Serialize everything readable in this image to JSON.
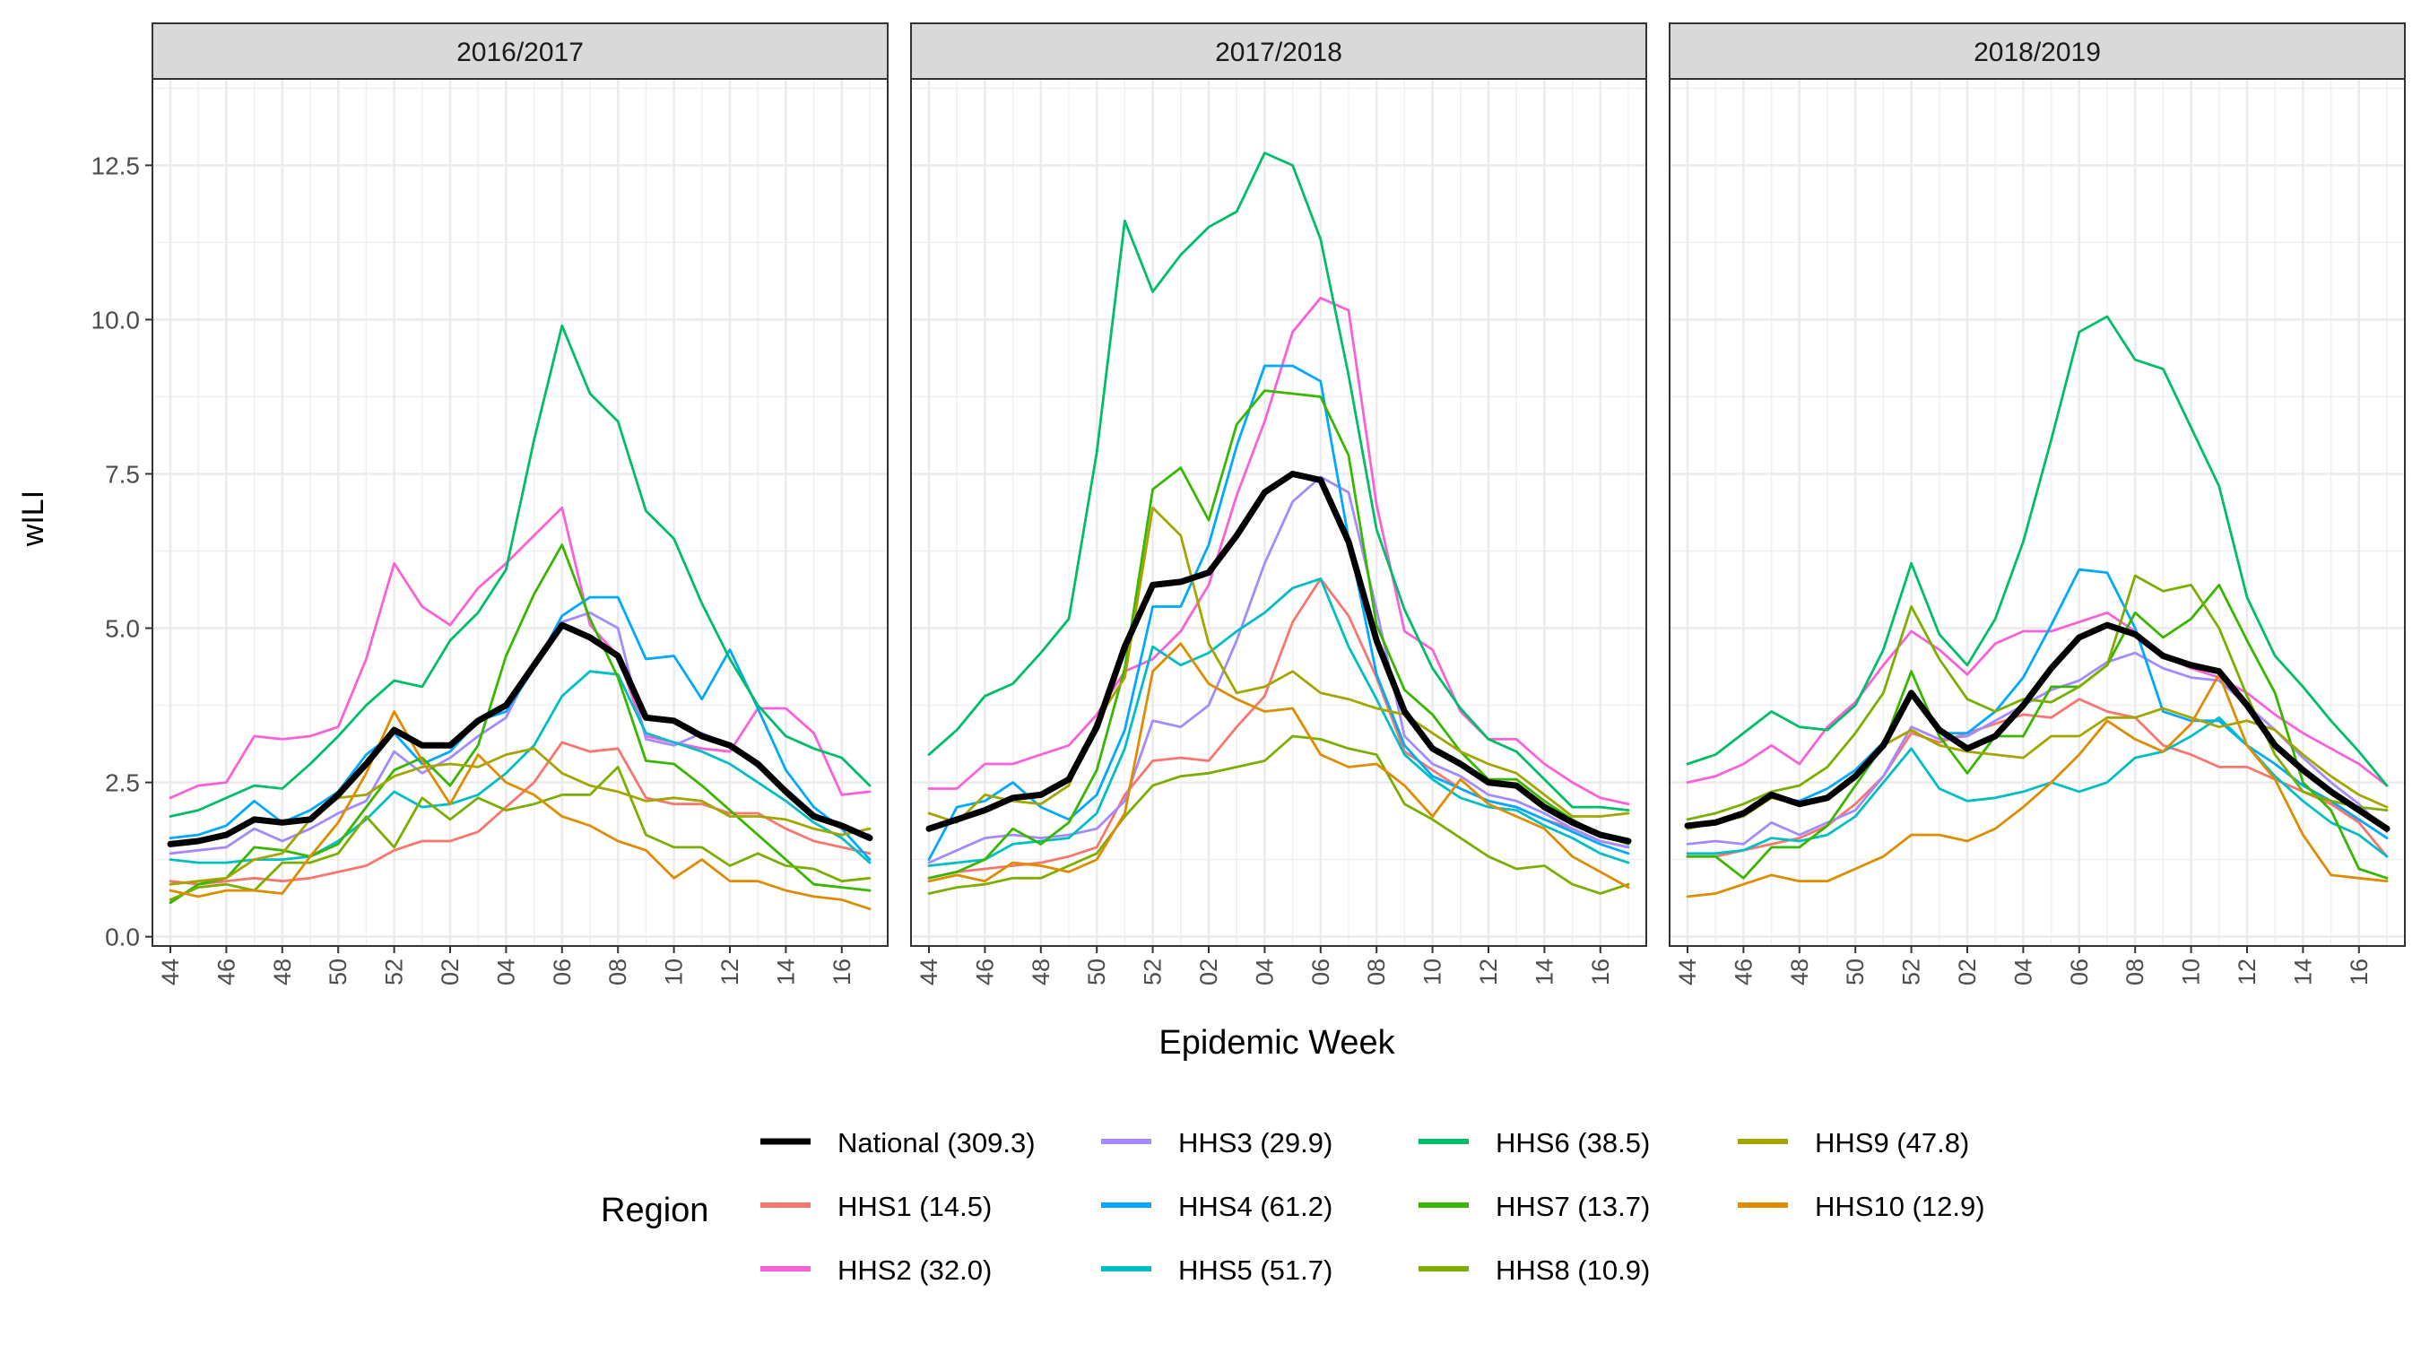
{
  "chart_data": {
    "type": "line",
    "facets": [
      "2016/2017",
      "2017/2018",
      "2018/2019"
    ],
    "xlabel": "Epidemic Week",
    "ylabel": "wILI",
    "x_tick_labels": [
      "44",
      "46",
      "48",
      "50",
      "52",
      "02",
      "04",
      "06",
      "08",
      "10",
      "12",
      "14",
      "16"
    ],
    "x_weeks": [
      "44",
      "45",
      "46",
      "47",
      "48",
      "49",
      "50",
      "51",
      "52",
      "01",
      "02",
      "03",
      "04",
      "05",
      "06",
      "07",
      "08",
      "09",
      "10",
      "11",
      "12",
      "13",
      "14",
      "15",
      "16",
      "17"
    ],
    "y_ticks": [
      0.0,
      2.5,
      5.0,
      7.5,
      10.0,
      12.5
    ],
    "y_tick_labels": [
      "0.0",
      "2.5",
      "5.0",
      "7.5",
      "10.0",
      "12.5"
    ],
    "ylim": [
      -0.15,
      13.9
    ],
    "grid": true,
    "legend": {
      "title": "Region",
      "placement": "bottom",
      "entries": [
        "National (309.3)",
        "HHS1 (14.5)",
        "HHS2 (32.0)",
        "HHS3 (29.9)",
        "HHS4 (61.2)",
        "HHS5 (51.7)",
        "HHS6 (38.5)",
        "HHS7 (13.7)",
        "HHS8 (10.9)",
        "HHS9 (47.8)",
        "HHS10 (12.9)"
      ]
    },
    "series": [
      {
        "name": "National (309.3)",
        "color": "#000000",
        "values": [
          [
            1.5,
            1.55,
            1.65,
            1.9,
            1.85,
            1.9,
            2.3,
            2.8,
            3.35,
            3.1,
            3.1,
            3.5,
            3.75,
            4.4,
            5.05,
            4.85,
            4.55,
            3.55,
            3.5,
            3.25,
            3.1,
            2.8,
            2.35,
            1.95,
            1.8,
            1.6
          ],
          [
            1.75,
            1.9,
            2.05,
            2.25,
            2.3,
            2.55,
            3.4,
            4.7,
            5.7,
            5.75,
            5.9,
            6.5,
            7.2,
            7.5,
            7.4,
            6.4,
            4.8,
            3.65,
            3.05,
            2.8,
            2.5,
            2.45,
            2.1,
            1.85,
            1.65,
            1.55
          ],
          [
            1.8,
            1.85,
            2.0,
            2.3,
            2.15,
            2.25,
            2.6,
            3.1,
            3.95,
            3.35,
            3.05,
            3.25,
            3.75,
            4.35,
            4.85,
            5.05,
            4.9,
            4.55,
            4.4,
            4.3,
            3.75,
            3.1,
            2.7,
            2.35,
            2.05,
            1.75
          ]
        ]
      },
      {
        "name": "HHS1 (14.5)",
        "color": "#FB61D7",
        "values": [
          [
            0.9,
            0.85,
            0.9,
            0.95,
            0.9,
            0.95,
            1.05,
            1.15,
            1.4,
            1.55,
            1.55,
            1.7,
            2.1,
            2.5,
            3.15,
            3.0,
            3.05,
            2.25,
            2.15,
            2.15,
            2.0,
            2.0,
            1.75,
            1.55,
            1.45,
            1.35
          ],
          [
            0.95,
            1.05,
            1.1,
            1.15,
            1.2,
            1.3,
            1.45,
            2.3,
            2.85,
            2.9,
            2.85,
            3.4,
            3.9,
            5.1,
            5.8,
            5.2,
            4.2,
            3.0,
            2.7,
            2.4,
            2.2,
            2.1,
            1.9,
            1.75,
            1.55,
            1.45
          ],
          [
            1.3,
            1.3,
            1.4,
            1.5,
            1.6,
            1.8,
            2.15,
            2.6,
            3.3,
            3.15,
            3.3,
            3.45,
            3.6,
            3.55,
            3.85,
            3.65,
            3.55,
            3.1,
            2.95,
            2.75,
            2.75,
            2.55,
            2.35,
            2.15,
            1.85,
            1.3
          ]
        ]
      },
      {
        "name": "HHS2 (32.0)",
        "color": "#E76BF3",
        "values": [
          [
            2.25,
            2.45,
            2.5,
            3.25,
            3.2,
            3.25,
            3.4,
            4.5,
            6.05,
            5.35,
            5.05,
            5.65,
            6.05,
            6.5,
            6.95,
            5.05,
            4.55,
            3.25,
            3.15,
            3.05,
            3.0,
            3.7,
            3.7,
            3.3,
            2.3,
            2.35
          ],
          [
            2.4,
            2.4,
            2.8,
            2.8,
            2.95,
            3.1,
            3.6,
            4.3,
            4.5,
            4.95,
            5.7,
            7.15,
            8.35,
            9.8,
            10.35,
            10.15,
            7.0,
            4.95,
            4.65,
            3.65,
            3.2,
            3.2,
            2.8,
            2.5,
            2.25,
            2.15
          ],
          [
            2.5,
            2.6,
            2.8,
            3.1,
            2.8,
            3.4,
            3.8,
            4.4,
            4.95,
            4.65,
            4.25,
            4.75,
            4.95,
            4.95,
            5.1,
            5.25,
            4.95,
            4.55,
            4.35,
            4.2,
            3.95,
            3.6,
            3.3,
            3.05,
            2.8,
            2.45
          ]
        ]
      },
      {
        "name": "HHS3 (29.9)",
        "color": "#A58AFF",
        "values": [
          [
            1.35,
            1.4,
            1.45,
            1.75,
            1.55,
            1.75,
            2.0,
            2.2,
            3.0,
            2.65,
            2.9,
            3.25,
            3.55,
            4.45,
            5.1,
            5.25,
            5.0,
            3.2,
            3.1,
            3.3,
            3.1,
            2.75,
            2.4,
            2.0,
            1.75,
            1.65
          ],
          [
            1.2,
            1.4,
            1.6,
            1.65,
            1.6,
            1.65,
            1.75,
            2.2,
            3.5,
            3.4,
            3.75,
            4.8,
            6.05,
            7.05,
            7.45,
            7.2,
            5.3,
            3.25,
            2.8,
            2.6,
            2.3,
            2.2,
            2.0,
            1.75,
            1.55,
            1.45
          ],
          [
            1.5,
            1.55,
            1.5,
            1.85,
            1.65,
            1.85,
            2.05,
            2.6,
            3.4,
            3.2,
            3.25,
            3.5,
            3.75,
            4.0,
            4.15,
            4.45,
            4.6,
            4.35,
            4.2,
            4.15,
            3.75,
            3.35,
            2.9,
            2.5,
            2.15,
            1.7
          ]
        ]
      },
      {
        "name": "HHS4 (61.2)",
        "color": "#00A9FF",
        "values": [
          [
            1.6,
            1.65,
            1.8,
            2.2,
            1.85,
            2.05,
            2.35,
            2.95,
            3.3,
            2.8,
            3.0,
            3.5,
            3.65,
            4.35,
            5.2,
            5.5,
            5.5,
            4.5,
            4.55,
            3.85,
            4.65,
            3.7,
            2.7,
            2.1,
            1.75,
            1.25
          ],
          [
            1.25,
            2.1,
            2.2,
            2.5,
            2.1,
            1.9,
            2.3,
            3.35,
            5.35,
            5.35,
            6.35,
            7.95,
            9.25,
            9.25,
            9.0,
            6.45,
            4.25,
            3.1,
            2.6,
            2.4,
            2.2,
            2.1,
            1.9,
            1.7,
            1.5,
            1.35
          ],
          [
            1.75,
            1.85,
            2.0,
            2.25,
            2.2,
            2.4,
            2.7,
            3.15,
            3.95,
            3.3,
            3.3,
            3.65,
            4.2,
            5.05,
            5.95,
            5.9,
            5.0,
            3.65,
            3.5,
            3.5,
            3.1,
            2.8,
            2.45,
            2.2,
            1.9,
            1.6
          ]
        ]
      },
      {
        "name": "HHS5 (51.7)",
        "color": "#00BFC4",
        "values": [
          [
            1.25,
            1.2,
            1.2,
            1.25,
            1.25,
            1.3,
            1.55,
            1.9,
            2.35,
            2.1,
            2.15,
            2.3,
            2.65,
            3.1,
            3.9,
            4.3,
            4.25,
            3.3,
            3.15,
            3.0,
            2.8,
            2.5,
            2.2,
            1.85,
            1.6,
            1.2
          ],
          [
            1.15,
            1.2,
            1.25,
            1.5,
            1.55,
            1.6,
            2.0,
            3.05,
            4.7,
            4.4,
            4.6,
            4.95,
            5.25,
            5.65,
            5.8,
            4.7,
            3.85,
            2.95,
            2.55,
            2.25,
            2.1,
            2.05,
            1.8,
            1.6,
            1.35,
            1.2
          ],
          [
            1.35,
            1.35,
            1.4,
            1.6,
            1.55,
            1.65,
            1.95,
            2.5,
            3.05,
            2.4,
            2.2,
            2.25,
            2.35,
            2.5,
            2.35,
            2.5,
            2.9,
            3.0,
            3.25,
            3.55,
            3.1,
            2.6,
            2.2,
            1.85,
            1.65,
            1.3
          ]
        ]
      },
      {
        "name": "HHS6 (38.5)",
        "color": "#00BF7D",
        "values": [
          [
            1.95,
            2.05,
            2.25,
            2.45,
            2.4,
            2.8,
            3.25,
            3.75,
            4.15,
            4.05,
            4.8,
            5.25,
            5.95,
            8.05,
            9.9,
            8.8,
            8.35,
            6.9,
            6.45,
            5.4,
            4.5,
            3.75,
            3.25,
            3.05,
            2.9,
            2.45
          ],
          [
            2.95,
            3.35,
            3.9,
            4.1,
            4.6,
            5.15,
            7.85,
            11.6,
            10.45,
            11.05,
            11.5,
            11.75,
            12.7,
            12.5,
            11.3,
            9.1,
            6.6,
            5.3,
            4.35,
            3.7,
            3.2,
            3.0,
            2.55,
            2.1,
            2.1,
            2.05
          ],
          [
            2.8,
            2.95,
            3.3,
            3.65,
            3.4,
            3.35,
            3.75,
            4.65,
            6.05,
            4.9,
            4.4,
            5.15,
            6.4,
            8.05,
            9.8,
            10.05,
            9.35,
            9.2,
            8.25,
            7.3,
            5.5,
            4.55,
            4.05,
            3.5,
            3.0,
            2.45
          ]
        ]
      },
      {
        "name": "HHS7 (13.7)",
        "color": "#39B600",
        "values": [
          [
            0.55,
            0.85,
            0.95,
            1.45,
            1.4,
            1.3,
            1.5,
            2.1,
            2.7,
            2.9,
            2.45,
            3.1,
            4.55,
            5.55,
            6.35,
            5.15,
            4.2,
            2.85,
            2.8,
            2.45,
            2.05,
            1.65,
            1.25,
            0.85,
            0.8,
            0.75
          ],
          [
            0.95,
            1.05,
            1.25,
            1.75,
            1.5,
            1.85,
            2.7,
            4.35,
            7.25,
            7.6,
            6.75,
            8.3,
            8.85,
            8.8,
            8.75,
            7.8,
            5.05,
            4.0,
            3.6,
            3.0,
            2.55,
            2.55,
            2.2,
            1.9,
            1.65,
            1.5
          ],
          [
            1.3,
            1.3,
            0.95,
            1.45,
            1.45,
            1.8,
            2.45,
            3.1,
            4.3,
            3.25,
            2.65,
            3.25,
            3.25,
            4.05,
            4.05,
            4.4,
            5.25,
            4.85,
            5.15,
            5.7,
            4.8,
            3.95,
            2.5,
            2.05,
            1.1,
            0.95
          ]
        ]
      },
      {
        "name": "HHS8 (10.9)",
        "color": "#7CAE00",
        "values": [
          [
            0.6,
            0.8,
            0.85,
            0.75,
            1.2,
            1.2,
            1.35,
            1.95,
            1.45,
            2.25,
            1.9,
            2.25,
            2.05,
            2.15,
            2.3,
            2.3,
            2.75,
            1.65,
            1.45,
            1.45,
            1.15,
            1.35,
            1.15,
            1.1,
            0.9,
            0.95
          ],
          [
            0.7,
            0.8,
            0.85,
            0.95,
            0.95,
            1.15,
            1.35,
            1.95,
            2.45,
            2.6,
            2.65,
            2.75,
            2.85,
            3.25,
            3.2,
            3.05,
            2.95,
            2.15,
            1.9,
            1.6,
            1.3,
            1.1,
            1.15,
            0.85,
            0.7,
            0.85
          ],
          [
            1.9,
            2.0,
            2.15,
            2.35,
            2.45,
            2.75,
            3.3,
            3.95,
            5.35,
            4.5,
            3.85,
            3.65,
            3.85,
            3.8,
            4.05,
            4.4,
            5.85,
            5.6,
            5.7,
            5.0,
            3.9,
            2.95,
            2.35,
            2.2,
            2.1,
            2.05
          ]
        ]
      },
      {
        "name": "HHS9 (47.8)",
        "color": "#D39200",
        "values": [
          [
            0.85,
            0.9,
            0.95,
            1.25,
            1.35,
            1.9,
            2.25,
            2.3,
            2.6,
            2.75,
            2.8,
            2.75,
            2.95,
            3.05,
            2.65,
            2.45,
            2.35,
            2.2,
            2.25,
            2.2,
            1.95,
            1.95,
            1.9,
            1.75,
            1.65,
            1.75
          ],
          [
            2.0,
            1.85,
            2.3,
            2.2,
            2.15,
            2.45,
            3.5,
            4.2,
            6.95,
            6.5,
            4.75,
            3.95,
            4.05,
            4.3,
            3.95,
            3.85,
            3.7,
            3.6,
            3.3,
            3.0,
            2.8,
            2.65,
            2.3,
            1.95,
            1.95,
            2.0
          ],
          [
            1.75,
            1.85,
            1.95,
            2.25,
            2.15,
            2.25,
            2.6,
            3.1,
            3.35,
            3.1,
            3.0,
            2.95,
            2.9,
            3.25,
            3.25,
            3.55,
            3.55,
            3.7,
            3.55,
            3.4,
            3.5,
            3.35,
            2.95,
            2.6,
            2.3,
            2.1
          ]
        ]
      },
      {
        "name": "HHS10 (12.9)",
        "color": "#F8766D",
        "values": [
          [
            0.75,
            0.65,
            0.75,
            0.75,
            0.7,
            1.3,
            1.85,
            2.65,
            3.65,
            2.85,
            2.15,
            2.95,
            2.5,
            2.3,
            1.95,
            1.8,
            1.55,
            1.4,
            0.95,
            1.25,
            0.9,
            0.9,
            0.75,
            0.65,
            0.6,
            0.45
          ],
          [
            0.9,
            1.0,
            0.9,
            1.2,
            1.15,
            1.05,
            1.25,
            2.0,
            4.3,
            4.75,
            4.1,
            3.85,
            3.65,
            3.7,
            2.95,
            2.75,
            2.8,
            2.45,
            1.95,
            2.55,
            2.15,
            1.95,
            1.75,
            1.3,
            1.05,
            0.8
          ],
          [
            0.65,
            0.7,
            0.85,
            1.0,
            0.9,
            0.9,
            1.1,
            1.3,
            1.65,
            1.65,
            1.55,
            1.75,
            2.1,
            2.5,
            2.95,
            3.5,
            3.2,
            3.0,
            3.45,
            4.25,
            3.1,
            2.55,
            1.65,
            1.0,
            0.95,
            0.9
          ]
        ]
      }
    ]
  },
  "colors": {
    "National (309.3)": "#000000",
    "HHS1 (14.5)": "#F8766D",
    "HHS2 (32.0)": "#FB61D7",
    "HHS3 (29.9)": "#A58AFF",
    "HHS4 (61.2)": "#00A9FF",
    "HHS5 (51.7)": "#00BFC4",
    "HHS6 (38.5)": "#00BE67",
    "HHS7 (13.7)": "#39B600",
    "HHS8 (10.9)": "#7CAE00",
    "HHS9 (47.8)": "#A3A500",
    "HHS10 (12.9)": "#DE8C00"
  }
}
